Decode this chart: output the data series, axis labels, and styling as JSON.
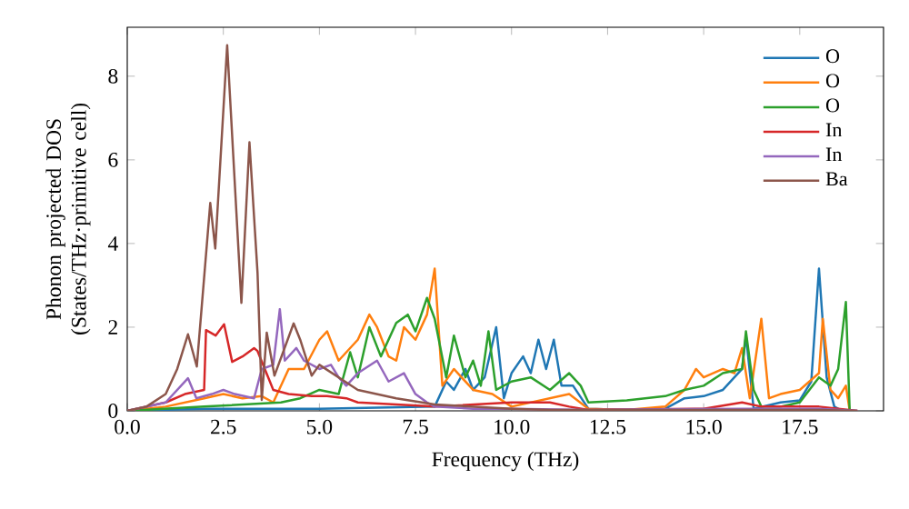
{
  "chart_data": {
    "type": "line",
    "xlabel": "Frequency (THz)",
    "ylabel": "Phonon projected DOS (States/THz·primitive cell)",
    "xlim": [
      0,
      19.68
    ],
    "ylim": [
      0,
      9.17
    ],
    "xticks": [
      {
        "value": 0,
        "label": "0.0"
      },
      {
        "value": 2.5,
        "label": "2.5"
      },
      {
        "value": 5,
        "label": "5.0"
      },
      {
        "value": 7.5,
        "label": "7.5"
      },
      {
        "value": 10,
        "label": "10.0"
      },
      {
        "value": 12.5,
        "label": "12.5"
      },
      {
        "value": 15,
        "label": "15.0"
      },
      {
        "value": 17.5,
        "label": "17.5"
      }
    ],
    "yticks": [
      0,
      2,
      4,
      6,
      8
    ],
    "legend": "top right",
    "series": [
      {
        "name": "O",
        "color": "#1f77b4",
        "x": [
          0,
          2,
          5,
          8,
          8.3,
          8.5,
          8.8,
          9.0,
          9.3,
          9.6,
          9.8,
          10,
          10.3,
          10.5,
          10.7,
          10.9,
          11.1,
          11.3,
          11.6,
          12,
          13,
          14,
          14.5,
          15,
          15.5,
          16,
          16.1,
          16.3,
          17,
          17.5,
          17.8,
          18.0,
          18.2,
          18.4,
          18.6
        ],
        "values": [
          0,
          0.05,
          0.05,
          0.1,
          0.7,
          0.5,
          1.0,
          0.5,
          0.8,
          2.0,
          0.3,
          0.9,
          1.3,
          0.9,
          1.7,
          1.0,
          1.7,
          0.6,
          0.6,
          0.05,
          0.02,
          0.05,
          0.3,
          0.35,
          0.5,
          1.0,
          1.8,
          0.05,
          0.2,
          0.25,
          0.7,
          3.4,
          0.8,
          0.1,
          0
        ]
      },
      {
        "name": "O",
        "color": "#ff7f0e",
        "x": [
          0,
          1,
          2,
          2.5,
          3,
          3.5,
          3.8,
          4.2,
          4.6,
          5,
          5.2,
          5.5,
          6,
          6.3,
          6.5,
          6.8,
          7,
          7.2,
          7.5,
          7.8,
          8.0,
          8.2,
          8.5,
          9,
          9.5,
          10,
          11,
          11.5,
          12,
          13,
          14,
          14.5,
          14.8,
          15,
          15.5,
          15.8,
          16,
          16.2,
          16.5,
          16.7,
          17,
          17.5,
          18,
          18.1,
          18.3,
          18.5,
          18.7,
          18.8
        ],
        "values": [
          0,
          0.1,
          0.3,
          0.4,
          0.3,
          0.35,
          0.2,
          1.0,
          1.0,
          1.7,
          1.9,
          1.2,
          1.7,
          2.3,
          2.0,
          1.3,
          1.2,
          2.0,
          1.7,
          2.3,
          3.4,
          0.6,
          1.0,
          0.5,
          0.4,
          0.1,
          0.3,
          0.4,
          0.05,
          0.02,
          0.1,
          0.5,
          1.0,
          0.8,
          1.0,
          0.9,
          1.5,
          0.3,
          2.2,
          0.3,
          0.4,
          0.5,
          0.9,
          2.2,
          0.5,
          0.3,
          0.6,
          0
        ]
      },
      {
        "name": "O",
        "color": "#2ca02c",
        "x": [
          0,
          2,
          3,
          4,
          4.5,
          5,
          5.5,
          5.8,
          6.0,
          6.3,
          6.6,
          7,
          7.3,
          7.5,
          7.8,
          8,
          8.3,
          8.5,
          8.8,
          9,
          9.2,
          9.4,
          9.6,
          10,
          10.5,
          11,
          11.5,
          11.8,
          12.0,
          13,
          14,
          14.5,
          15,
          15.5,
          16,
          16.1,
          16.3,
          16.5,
          17,
          17.5,
          18,
          18.3,
          18.5,
          18.7,
          18.8
        ],
        "values": [
          0,
          0.1,
          0.15,
          0.2,
          0.3,
          0.5,
          0.4,
          1.4,
          0.8,
          2.0,
          1.3,
          2.1,
          2.3,
          1.9,
          2.7,
          2.2,
          0.8,
          1.8,
          0.8,
          1.2,
          0.6,
          1.9,
          0.5,
          0.7,
          0.8,
          0.5,
          0.9,
          0.6,
          0.2,
          0.25,
          0.35,
          0.5,
          0.6,
          0.9,
          1.0,
          1.9,
          0.5,
          0.1,
          0.1,
          0.2,
          0.8,
          0.6,
          1.0,
          2.6,
          0
        ]
      },
      {
        "name": "In",
        "color": "#d62728",
        "x": [
          0,
          1,
          1.5,
          2.0,
          2.05,
          2.3,
          2.52,
          2.73,
          3.0,
          3.3,
          3.39,
          3.8,
          4.2,
          4.8,
          5.2,
          5.7,
          6,
          7,
          8,
          9,
          10,
          11,
          11.5,
          12,
          15,
          16,
          16.5,
          18,
          18.5,
          19
        ],
        "values": [
          0,
          0.2,
          0.4,
          0.5,
          1.93,
          1.8,
          2.07,
          1.17,
          1.3,
          1.5,
          1.43,
          0.5,
          0.4,
          0.35,
          0.35,
          0.3,
          0.2,
          0.15,
          0.1,
          0.15,
          0.2,
          0.2,
          0.1,
          0.02,
          0.05,
          0.2,
          0.1,
          0.1,
          0.05,
          0
        ]
      },
      {
        "name": "In",
        "color": "#9467bd",
        "x": [
          0,
          1,
          1.58,
          1.8,
          2.2,
          2.5,
          2.8,
          3.3,
          3.5,
          3.8,
          3.97,
          4.1,
          4.4,
          4.6,
          5,
          5.3,
          5.5,
          5.7,
          6,
          6.5,
          6.8,
          7.2,
          7.5,
          7.8,
          8,
          9,
          10,
          12,
          16,
          18,
          19
        ],
        "values": [
          0,
          0.2,
          0.78,
          0.3,
          0.4,
          0.5,
          0.4,
          0.3,
          1.0,
          1.1,
          2.43,
          1.2,
          1.5,
          1.2,
          1.0,
          1.1,
          0.8,
          0.6,
          0.9,
          1.2,
          0.7,
          0.9,
          0.4,
          0.2,
          0.1,
          0.05,
          0.05,
          0.02,
          0.05,
          0.05,
          0
        ]
      },
      {
        "name": "Ba",
        "color": "#8c564b",
        "x": [
          0,
          0.5,
          1.0,
          1.3,
          1.58,
          1.81,
          2.16,
          2.29,
          2.6,
          2.97,
          3.18,
          3.39,
          3.5,
          3.63,
          3.83,
          4.33,
          4.5,
          4.8,
          5.0,
          5.5,
          6.0,
          6.5,
          7,
          8,
          9,
          10,
          11,
          12,
          18,
          19
        ],
        "values": [
          0,
          0.1,
          0.4,
          1.0,
          1.83,
          1.06,
          4.97,
          3.88,
          8.74,
          2.58,
          6.42,
          3.3,
          0.26,
          1.87,
          0.84,
          2.09,
          1.7,
          0.84,
          1.1,
          0.8,
          0.5,
          0.4,
          0.3,
          0.15,
          0.1,
          0.05,
          0.02,
          0.02,
          0.02,
          0
        ]
      }
    ]
  }
}
